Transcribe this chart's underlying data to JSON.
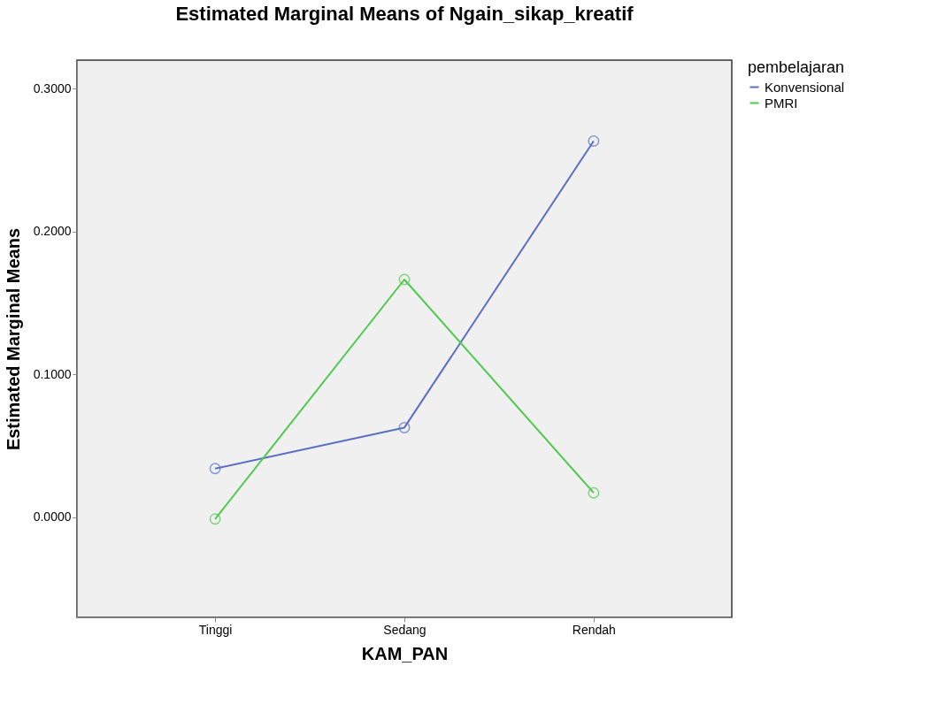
{
  "chart_data": {
    "type": "line",
    "title": "Estimated Marginal Means of Ngain_sikap_kreatif",
    "xlabel": "KAM_PAN",
    "ylabel": "Estimated Marginal Means",
    "legend_title": "pembelajaran",
    "categories": [
      "Tinggi",
      "Sedang",
      "Rendah"
    ],
    "series": [
      {
        "name": "Konvensional",
        "color": "#5a6fc4",
        "values": [
          0.0341,
          0.0628,
          0.2634
        ]
      },
      {
        "name": "PMRI",
        "color": "#4ec94e",
        "values": [
          -0.0012,
          0.1665,
          0.0171
        ]
      }
    ],
    "ylim": [
      -0.0701,
      0.3201
    ],
    "yticks": [
      {
        "value": 0,
        "label": "0.0000"
      },
      {
        "value": 0.1,
        "label": "0.1000"
      },
      {
        "value": 0.2,
        "label": "0.2000"
      },
      {
        "value": 0.3,
        "label": "0.3000"
      }
    ],
    "legend": "top right",
    "marker": "circle",
    "line_style": "solid"
  }
}
